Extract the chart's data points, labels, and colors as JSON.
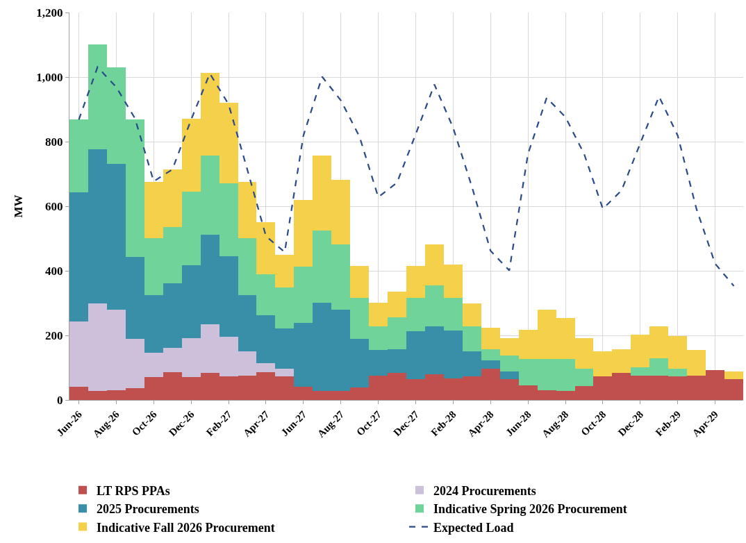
{
  "chart_data": {
    "type": "bar",
    "stacked": true,
    "ylabel": "MW",
    "categories": [
      "Jun-26",
      null,
      "Aug-26",
      null,
      "Oct-26",
      null,
      "Dec-26",
      null,
      "Feb-27",
      null,
      "Apr-27",
      null,
      "Jun-27",
      null,
      "Aug-27",
      null,
      "Oct-27",
      null,
      "Dec-27",
      null,
      "Feb-28",
      null,
      "Apr-28",
      null,
      "Jun-28",
      null,
      "Aug-28",
      null,
      "Oct-28",
      null,
      "Dec-28",
      null,
      "Feb-29",
      null,
      "Apr-29",
      null
    ],
    "ylim": [
      0,
      1200
    ],
    "yticks": [
      0,
      200,
      400,
      600,
      800,
      {
        "value": 1000,
        "label": "1,000"
      },
      {
        "value": 1200,
        "label": "1,200"
      }
    ],
    "grid": true,
    "legend": "bottom",
    "series": [
      {
        "name": "LT RPS PPAs",
        "color": "#c0504d",
        "values": [
          40,
          27,
          31,
          37,
          71,
          86,
          70,
          84,
          73,
          75,
          85,
          73,
          40,
          27,
          28,
          38,
          75,
          84,
          65,
          79,
          66,
          73,
          97,
          65,
          45,
          30,
          27,
          43,
          73,
          84,
          75,
          75,
          73,
          75,
          93,
          65
        ]
      },
      {
        "name": "2024 Procurements",
        "color": "#ccc0da",
        "values": [
          202,
          273,
          249,
          153,
          75,
          76,
          121,
          151,
          122,
          75,
          29,
          23,
          0,
          0,
          0,
          0,
          0,
          0,
          0,
          0,
          0,
          0,
          0,
          0,
          0,
          0,
          0,
          0,
          0,
          0,
          0,
          0,
          0,
          0,
          0,
          0
        ]
      },
      {
        "name": "2025 Procurements",
        "color": "#3a8fa8",
        "values": [
          401,
          476,
          452,
          253,
          178,
          200,
          227,
          277,
          251,
          174,
          148,
          125,
          198,
          275,
          252,
          151,
          79,
          74,
          148,
          150,
          150,
          77,
          25,
          24,
          0,
          0,
          0,
          0,
          0,
          0,
          0,
          0,
          0,
          0,
          0,
          0
        ]
      },
      {
        "name": "Indicative Spring 2026 Procurement",
        "color": "#6fd39a",
        "values": [
          225,
          325,
          299,
          425,
          177,
          173,
          228,
          244,
          225,
          177,
          127,
          128,
          175,
          223,
          201,
          127,
          73,
          97,
          103,
          125,
          100,
          77,
          36,
          49,
          81,
          96,
          99,
          53,
          0,
          0,
          26,
          53,
          23,
          0,
          0,
          0
        ]
      },
      {
        "name": "Indicative Fall 2026 Procurement",
        "color": "#f5d04a",
        "values": [
          0,
          0,
          0,
          0,
          174,
          179,
          226,
          257,
          249,
          174,
          162,
          101,
          207,
          232,
          200,
          100,
          75,
          80,
          100,
          128,
          104,
          73,
          65,
          53,
          91,
          154,
          128,
          95,
          77,
          72,
          102,
          99,
          101,
          79,
          0,
          24
        ]
      },
      {
        "name": "Expected Load",
        "type": "line",
        "color": "#2a4a8a",
        "line_style": "dashed",
        "marker": "none",
        "values": [
          868,
          1031,
          969,
          872,
          677,
          714,
          868,
          1011,
          916,
          714,
          507,
          458,
          819,
          1001,
          928,
          815,
          628,
          673,
          823,
          977,
          843,
          661,
          462,
          401,
          762,
          936,
          876,
          762,
          592,
          649,
          795,
          940,
          819,
          592,
          422,
          353
        ]
      }
    ]
  }
}
